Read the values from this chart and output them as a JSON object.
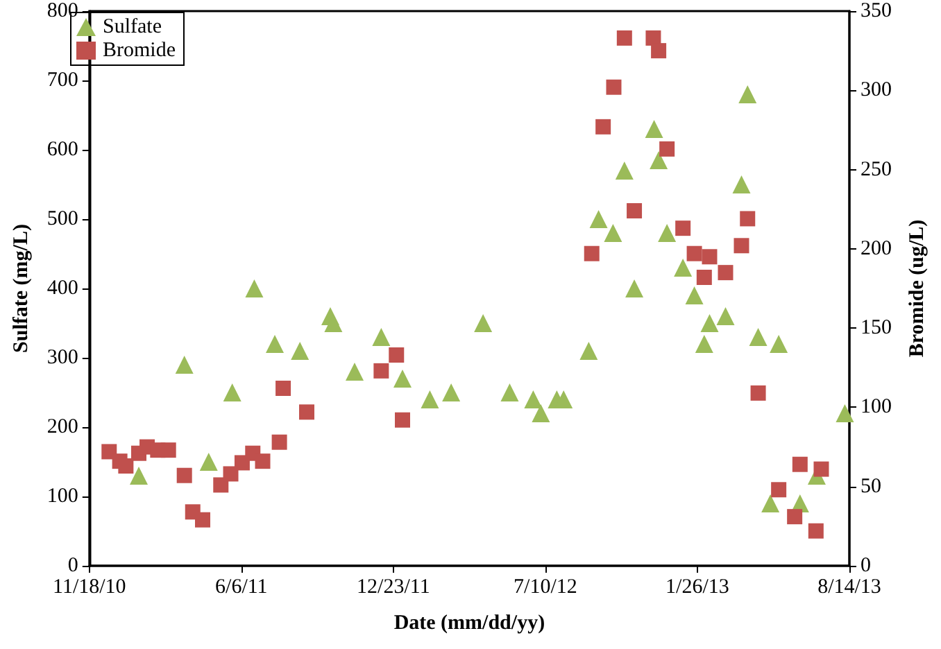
{
  "chart_data": {
    "type": "scatter",
    "xlabel": "Date (mm/dd/yy)",
    "ylabel": "Sulfate (mg/L)",
    "y2label": "Bromide (ug/L)",
    "xlim": [
      "2010-11-18",
      "2013-08-14"
    ],
    "xticks": [
      {
        "value": "2010-11-18",
        "label": "11/18/10"
      },
      {
        "value": "2011-06-06",
        "label": "6/6/11"
      },
      {
        "value": "2011-12-23",
        "label": "12/23/11"
      },
      {
        "value": "2012-07-10",
        "label": "7/10/12"
      },
      {
        "value": "2013-01-26",
        "label": "1/26/13"
      },
      {
        "value": "2013-08-14",
        "label": "8/14/13"
      }
    ],
    "ylim": [
      0,
      800
    ],
    "yticks": [
      0,
      100,
      200,
      300,
      400,
      500,
      600,
      700,
      800
    ],
    "y2lim": [
      0,
      350
    ],
    "y2ticks": [
      0,
      50,
      100,
      150,
      200,
      250,
      300,
      350
    ],
    "grid": false,
    "legend": "top left",
    "series": [
      {
        "name": "Sulfate",
        "color": "#9bbb59",
        "marker": "triangle",
        "x": [
          "2011-01-22",
          "2011-03-23",
          "2011-04-24",
          "2011-05-25",
          "2011-06-23",
          "2011-07-20",
          "2011-08-22",
          "2011-10-01",
          "2011-10-05",
          "2011-11-02",
          "2011-12-07",
          "2012-01-04",
          "2012-02-09",
          "2012-03-08",
          "2012-04-19",
          "2012-05-24",
          "2012-06-24",
          "2012-07-04",
          "2012-07-25",
          "2012-08-03",
          "2012-09-05",
          "2012-09-18",
          "2012-10-07",
          "2012-10-22",
          "2012-11-04",
          "2012-11-30",
          "2012-12-06",
          "2012-12-17",
          "2013-01-07",
          "2013-01-22",
          "2013-02-04",
          "2013-02-11",
          "2013-03-04",
          "2013-03-25",
          "2013-04-02",
          "2013-04-16",
          "2013-05-02",
          "2013-05-13",
          "2013-06-10",
          "2013-07-02",
          "2013-08-08"
        ],
        "values": [
          130,
          290,
          150,
          250,
          400,
          320,
          310,
          360,
          350,
          280,
          330,
          270,
          240,
          250,
          350,
          250,
          240,
          220,
          240,
          240,
          310,
          500,
          480,
          570,
          400,
          630,
          585,
          480,
          430,
          390,
          320,
          350,
          360,
          550,
          680,
          330,
          90,
          320,
          90,
          130,
          220
        ]
      },
      {
        "name": "Bromide",
        "color": "#c0504d",
        "marker": "square",
        "axis": "y2",
        "x": [
          "2010-12-14",
          "2010-12-28",
          "2011-01-05",
          "2011-01-22",
          "2011-02-02",
          "2011-02-16",
          "2011-03-02",
          "2011-03-23",
          "2011-04-03",
          "2011-04-16",
          "2011-05-10",
          "2011-05-23",
          "2011-06-07",
          "2011-06-21",
          "2011-07-04",
          "2011-07-26",
          "2011-07-31",
          "2011-08-31",
          "2011-12-07",
          "2011-12-27",
          "2012-01-04",
          "2012-09-09",
          "2012-09-24",
          "2012-10-08",
          "2012-10-22",
          "2012-11-04",
          "2012-11-29",
          "2012-12-06",
          "2012-12-17",
          "2013-01-07",
          "2013-01-22",
          "2013-02-04",
          "2013-02-11",
          "2013-03-04",
          "2013-03-25",
          "2013-04-02",
          "2013-04-16",
          "2013-05-13",
          "2013-06-03",
          "2013-06-10",
          "2013-07-01",
          "2013-07-08"
        ],
        "values": [
          72,
          66,
          63,
          71,
          75,
          73,
          73,
          57,
          34,
          29,
          51,
          58,
          65,
          71,
          66,
          78,
          112,
          97,
          123,
          133,
          92,
          197,
          277,
          302,
          333,
          224,
          333,
          325,
          263,
          213,
          197,
          182,
          195,
          185,
          202,
          219,
          109,
          48,
          31,
          64,
          22,
          61
        ]
      }
    ]
  }
}
